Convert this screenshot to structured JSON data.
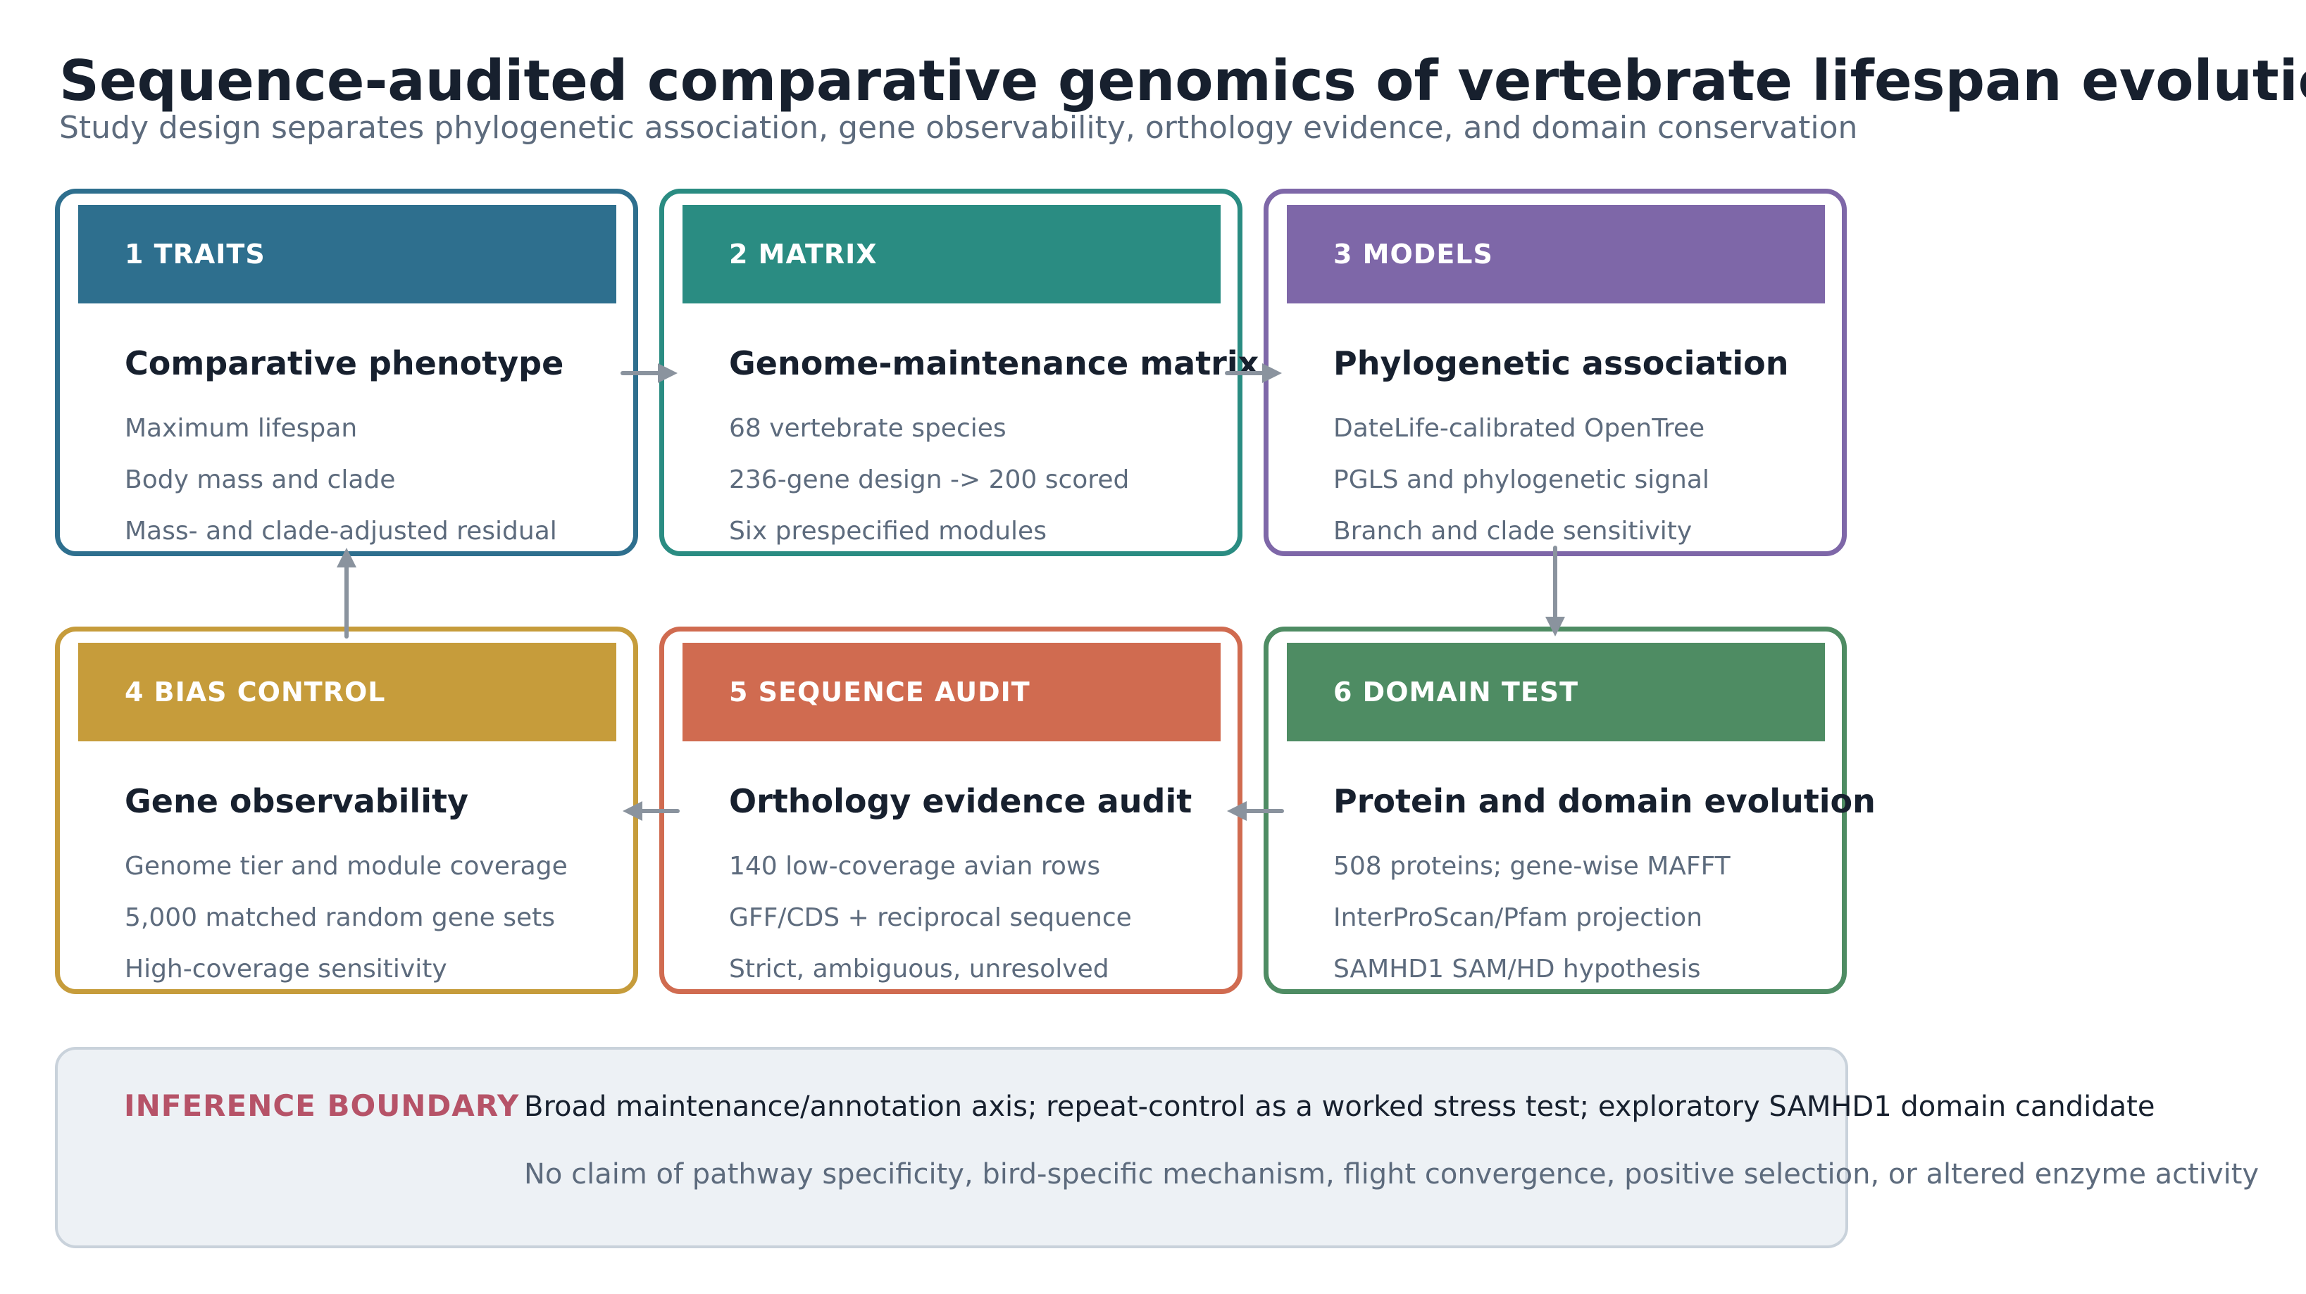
{
  "header": {
    "title": "Sequence-audited comparative genomics of vertebrate lifespan evolution",
    "subtitle": "Study design separates phylogenetic association, gene observability, orthology evidence, and domain conservation"
  },
  "cards": [
    {
      "band_label": "1  TRAITS",
      "heading": "Comparative phenotype",
      "items": [
        "Maximum lifespan",
        "Body mass and clade",
        "Mass- and clade-adjusted residual"
      ],
      "color": "#2e6f8e"
    },
    {
      "band_label": "2  MATRIX",
      "heading": "Genome-maintenance matrix",
      "items": [
        "68 vertebrate species",
        "236-gene design -> 200 scored",
        "Six prespecified modules"
      ],
      "color": "#2a8c82"
    },
    {
      "band_label": "3  MODELS",
      "heading": "Phylogenetic association",
      "items": [
        "DateLife-calibrated OpenTree",
        "PGLS and phylogenetic signal",
        "Branch and clade sensitivity"
      ],
      "color": "#7e67a8"
    },
    {
      "band_label": "4  BIAS CONTROL",
      "heading": "Gene observability",
      "items": [
        "Genome tier and module coverage",
        "5,000 matched random gene sets",
        "High-coverage sensitivity"
      ],
      "color": "#c69c3b"
    },
    {
      "band_label": "5  SEQUENCE AUDIT",
      "heading": "Orthology evidence audit",
      "items": [
        "140 low-coverage avian rows",
        "GFF/CDS + reciprocal sequence",
        "Strict, ambiguous, unresolved"
      ],
      "color": "#d06b50"
    },
    {
      "band_label": "6  DOMAIN TEST",
      "heading": "Protein and domain evolution",
      "items": [
        "508 proteins; gene-wise MAFFT",
        "InterProScan/Pfam projection",
        "SAMHD1 SAM/HD hypothesis"
      ],
      "color": "#4e8c63"
    }
  ],
  "boundary": {
    "label": "INFERENCE BOUNDARY",
    "line1": "Broad maintenance/annotation axis; repeat-control as a worked stress test; exploratory SAMHD1 domain candidate",
    "line2": "No claim of pathway specificity, bird-specific mechanism, flight convergence, positive selection, or altered enzyme activity"
  },
  "colors": {
    "arrow": "#8a939e",
    "title": "#17202e",
    "muted": "#5d6b7d",
    "boundary_label": "#b65368",
    "boundary_fill": "#edf1f5",
    "boundary_border": "#c9d2db"
  }
}
